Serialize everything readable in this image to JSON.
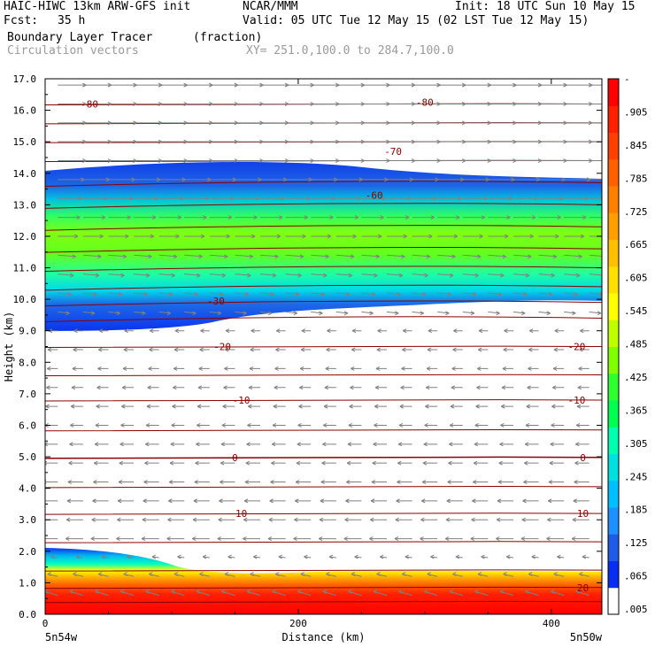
{
  "header": {
    "line1_left": "HAIC-HIWC 13km ARW-GFS init",
    "line1_mid": "NCAR/MMM",
    "line1_right": "Init: 18 UTC Sun 10 May 15",
    "fcst_label": "Fcst:",
    "fcst_value": "35 h",
    "valid": "Valid: 05 UTC Tue 12 May 15 (02 LST Tue 12 May 15)",
    "field_name": "Boundary Layer Tracer",
    "field_units": "(fraction)",
    "vector_name": "Circulation vectors",
    "xy_range": "XY= 251.0,100.0 to 284.7,100.0"
  },
  "colors": {
    "contour": "#8b0000",
    "vector": "#808080",
    "colorbar": [
      "#ffffff",
      "#0a2ef0",
      "#1e5be6",
      "#1e90ff",
      "#00bfff",
      "#00e0e0",
      "#00ffb0",
      "#00ff50",
      "#30ff30",
      "#80ff00",
      "#c0ff00",
      "#ffff00",
      "#ffe000",
      "#ffc000",
      "#ffa000",
      "#ff8000",
      "#ff6000",
      "#ff4000",
      "#ff2000",
      "#ff0000"
    ]
  },
  "chart_data": {
    "type": "heatmap",
    "title": "Boundary Layer Tracer (fraction)",
    "xlabel": "Distance (km)",
    "ylabel": "Height (km)",
    "xlim": [
      0,
      440
    ],
    "ylim": [
      0,
      17
    ],
    "x_ticks": [
      0,
      200,
      400
    ],
    "y_ticks": [
      "0.0",
      "1.0",
      "2.0",
      "3.0",
      "4.0",
      "5.0",
      "6.0",
      "7.0",
      "8.0",
      "9.0",
      "10.0",
      "11.0",
      "12.0",
      "13.0",
      "14.0",
      "15.0",
      "16.0",
      "17.0"
    ],
    "x_end_labels": {
      "left": "5n54w",
      "right": "5n50w"
    },
    "colorbar_labels": [
      "-",
      ".905",
      ".845",
      ".785",
      ".725",
      ".665",
      ".605",
      ".545",
      ".485",
      ".425",
      ".365",
      ".305",
      ".245",
      ".185",
      ".125",
      ".065",
      ".005"
    ],
    "contour_labels": [
      {
        "text": "-80",
        "x": 35,
        "y": 16.2
      },
      {
        "text": "-80",
        "x": 300,
        "y": 16.25
      },
      {
        "text": "-70",
        "x": 275,
        "y": 14.7
      },
      {
        "text": "-60",
        "x": 260,
        "y": 13.3
      },
      {
        "text": "-30",
        "x": 135,
        "y": 9.95
      },
      {
        "text": "-20",
        "x": 140,
        "y": 8.5
      },
      {
        "text": "-20",
        "x": 420,
        "y": 8.5
      },
      {
        "text": "-10",
        "x": 155,
        "y": 6.8
      },
      {
        "text": "-10",
        "x": 420,
        "y": 6.8
      },
      {
        "text": "0",
        "x": 150,
        "y": 4.98
      },
      {
        "text": "0",
        "x": 425,
        "y": 4.98
      },
      {
        "text": "10",
        "x": 155,
        "y": 3.2
      },
      {
        "text": "10",
        "x": 425,
        "y": 3.2
      },
      {
        "text": "20",
        "x": 425,
        "y": 0.85
      }
    ]
  }
}
